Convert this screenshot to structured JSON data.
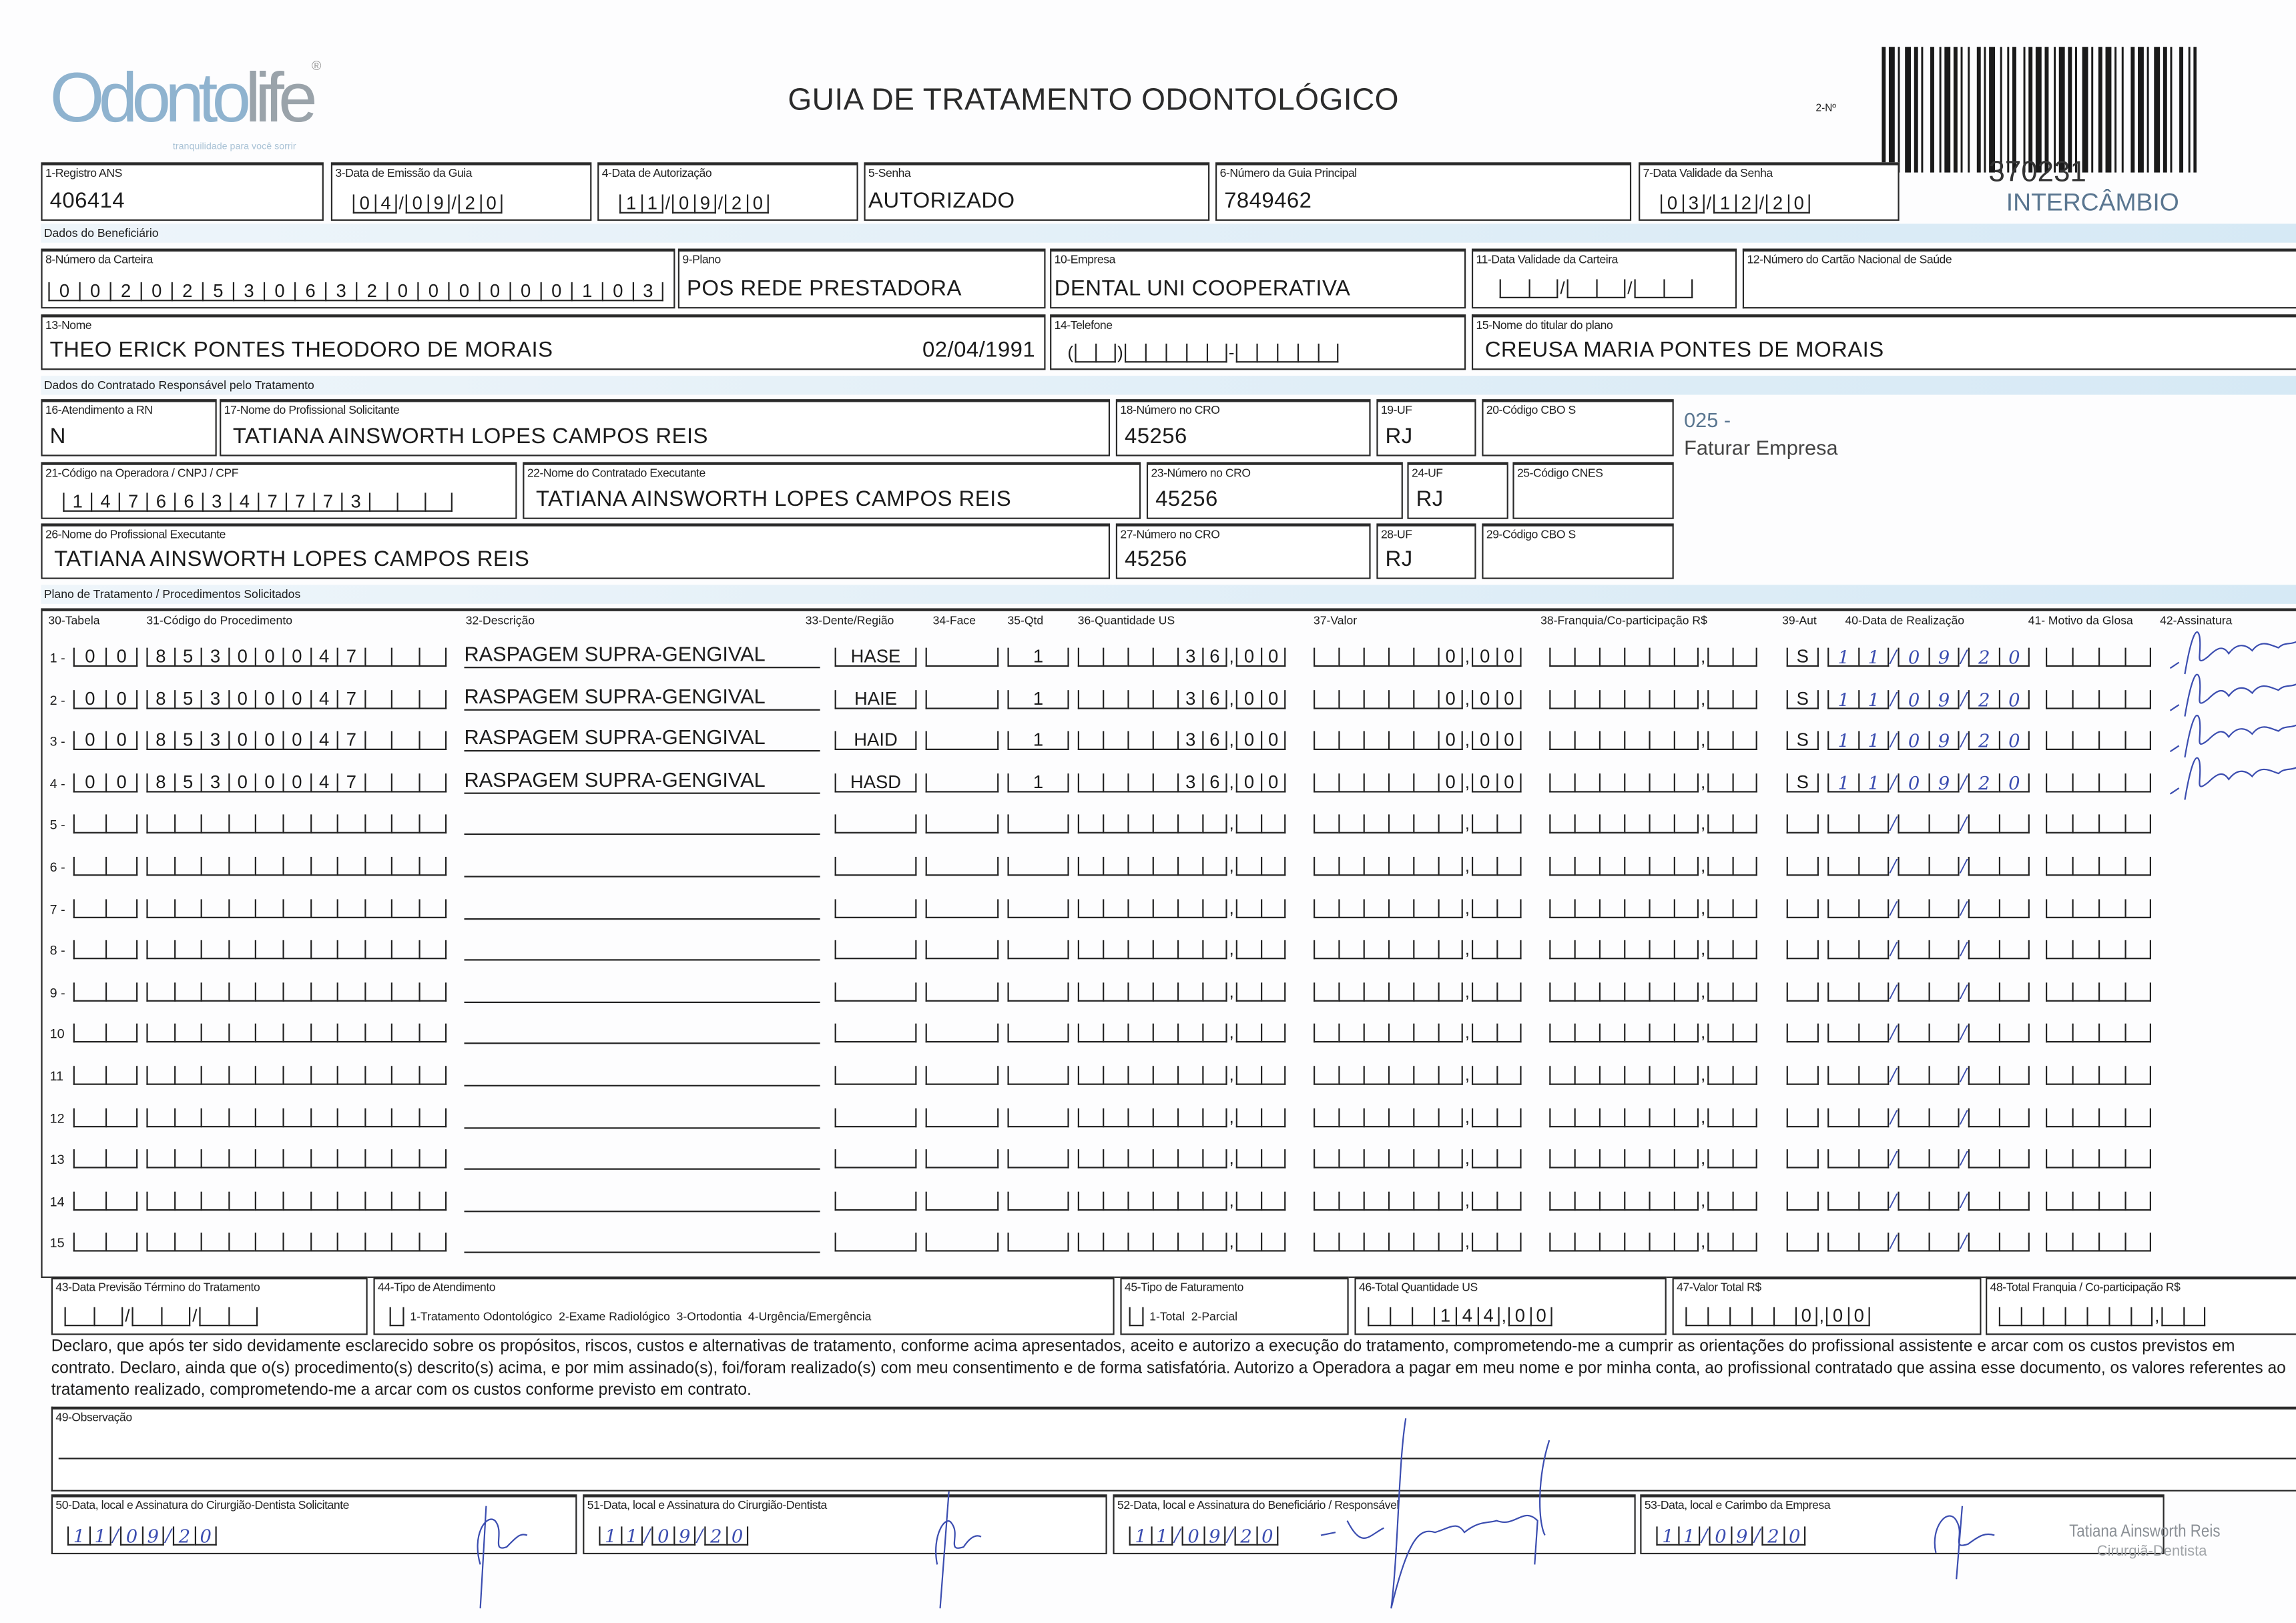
{
  "header": {
    "logo_part1": "Odonto",
    "logo_part2": "life",
    "logo_tagline": "tranquilidade para você sorrir",
    "title": "GUIA DE TRATAMENTO ODONTOLÓGICO",
    "guide_no_label": "2-Nº",
    "guide_number": "370231",
    "guide_type": "INTERCÂMBIO"
  },
  "colors": {
    "section_bar": "#d6e9f5",
    "handwriting": "#3b4db0",
    "logo_blue": "#8fb3cf",
    "guide_type": "#5a7690"
  },
  "sections": {
    "beneficiary": "Dados do Beneficiário",
    "contractor": "Dados do Contratado Responsável pelo Tratamento",
    "plan": "Plano de Tratamento / Procedimentos Solicitados"
  },
  "fields": {
    "f1": {
      "label": "1-Registro ANS",
      "value": "406414"
    },
    "f3": {
      "label": "3-Data de Emissão da Guia",
      "value": "04/09/20"
    },
    "f4": {
      "label": "4-Data de Autorização",
      "value": "11/09/20"
    },
    "f5": {
      "label": "5-Senha",
      "value": "AUTORIZADO"
    },
    "f6": {
      "label": "6-Número da Guia Principal",
      "value": "7849462"
    },
    "f7": {
      "label": "7-Data Validade da Senha",
      "value": "03/12/20"
    },
    "f8": {
      "label": "8-Número da Carteira",
      "value": "00202530632000000103"
    },
    "f9": {
      "label": "9-Plano",
      "value": "POS REDE PRESTADORA"
    },
    "f10": {
      "label": "10-Empresa",
      "value": "DENTAL UNI  COOPERATIVA"
    },
    "f11": {
      "label": "11-Data Validade da Carteira",
      "value": ""
    },
    "f12": {
      "label": "12-Número do Cartão Nacional de Saúde",
      "value": ""
    },
    "f13": {
      "label": "13-Nome",
      "value": "THEO ERICK PONTES THEODORO DE MORAIS",
      "birth_date": "02/04/1991"
    },
    "f14": {
      "label": "14-Telefone",
      "value": ""
    },
    "f15": {
      "label": "15-Nome do titular do plano",
      "value": "CREUSA MARIA PONTES DE MORAIS"
    },
    "f16": {
      "label": "16-Atendimento a RN",
      "value": "N"
    },
    "f17": {
      "label": "17-Nome do Profissional Solicitante",
      "value": "TATIANA AINSWORTH LOPES CAMPOS REIS"
    },
    "f18": {
      "label": "18-Número no CRO",
      "value": "45256"
    },
    "f19": {
      "label": "19-UF",
      "value": "RJ"
    },
    "f20": {
      "label": "20-Código CBO S",
      "value": ""
    },
    "f21": {
      "label": "21-Código na Operadora / CNPJ / CPF",
      "value": "14766347773"
    },
    "f22": {
      "label": "22-Nome do Contratado Executante",
      "value": "TATIANA AINSWORTH LOPES CAMPOS REIS"
    },
    "f23": {
      "label": "23-Número no CRO",
      "value": "45256"
    },
    "f24": {
      "label": "24-UF",
      "value": "RJ"
    },
    "f25": {
      "label": "25-Código CNES",
      "value": ""
    },
    "f26": {
      "label": "26-Nome do Profissional Executante",
      "value": "TATIANA AINSWORTH LOPES CAMPOS REIS"
    },
    "f27": {
      "label": "27-Número no CRO",
      "value": "45256"
    },
    "f28": {
      "label": "28-UF",
      "value": "RJ"
    },
    "f29": {
      "label": "29-Código CBO S",
      "value": ""
    }
  },
  "annotation": {
    "code": "025 -",
    "text": "Faturar Empresa"
  },
  "table": {
    "headers": {
      "tabela": "30-Tabela",
      "codigo": "31-Código do Procedimento",
      "descricao": "32-Descrição",
      "dente": "33-Dente/Região",
      "face": "34-Face",
      "qtd": "35-Qtd",
      "qtd_us": "36-Quantidade US",
      "valor": "37-Valor",
      "franquia": "38-Franquia/Co-participação R$",
      "aut": "39-Aut",
      "data": "40-Data de Realização",
      "glosa": "41- Motivo da Glosa",
      "assinatura": "42-Assinatura"
    },
    "items": [
      {
        "n": "1 -",
        "tabela": "00",
        "codigo": "85300047",
        "descricao": "RASPAGEM SUPRA-GENGIVAL",
        "dente": "HASE",
        "face": "",
        "qtd": "1",
        "qtd_us": "36,00",
        "valor": "0,00",
        "franquia": "",
        "aut": "S",
        "data": "11/09/20",
        "glosa": "",
        "signed": true
      },
      {
        "n": "2 -",
        "tabela": "00",
        "codigo": "85300047",
        "descricao": "RASPAGEM SUPRA-GENGIVAL",
        "dente": "HAIE",
        "face": "",
        "qtd": "1",
        "qtd_us": "36,00",
        "valor": "0,00",
        "franquia": "",
        "aut": "S",
        "data": "11/09/20",
        "glosa": "",
        "signed": true
      },
      {
        "n": "3 -",
        "tabela": "00",
        "codigo": "85300047",
        "descricao": "RASPAGEM SUPRA-GENGIVAL",
        "dente": "HAID",
        "face": "",
        "qtd": "1",
        "qtd_us": "36,00",
        "valor": "0,00",
        "franquia": "",
        "aut": "S",
        "data": "11/09/20",
        "glosa": "",
        "signed": true
      },
      {
        "n": "4 -",
        "tabela": "00",
        "codigo": "85300047",
        "descricao": "RASPAGEM SUPRA-GENGIVAL",
        "dente": "HASD",
        "face": "",
        "qtd": "1",
        "qtd_us": "36,00",
        "valor": "0,00",
        "franquia": "",
        "aut": "S",
        "data": "11/09/20",
        "glosa": "",
        "signed": true
      },
      {
        "n": "5 -"
      },
      {
        "n": "6 -"
      },
      {
        "n": "7 -"
      },
      {
        "n": "8 -"
      },
      {
        "n": "9 -"
      },
      {
        "n": "10"
      },
      {
        "n": "11"
      },
      {
        "n": "12"
      },
      {
        "n": "13"
      },
      {
        "n": "14"
      },
      {
        "n": "15"
      }
    ]
  },
  "totals": {
    "f43": {
      "label": "43-Data Previsão Término do Tratamento",
      "value": ""
    },
    "f44": {
      "label": "44-Tipo de Atendimento",
      "options": "1-Tratamento Odontológico  2-Exame Radiológico  3-Ortodontia  4-Urgência/Emergência",
      "value": ""
    },
    "f45": {
      "label": "45-Tipo de Faturamento",
      "options": "1-Total  2-Parcial",
      "value": ""
    },
    "f46": {
      "label": "46-Total Quantidade US",
      "value": "144,00"
    },
    "f47": {
      "label": "47-Valor Total R$",
      "value": "0,00"
    },
    "f48": {
      "label": "48-Total Franquia / Co-participação R$",
      "value": ""
    }
  },
  "declaration": "Declaro, que após ter sido devidamente esclarecido sobre os propósitos, riscos, custos e alternativas de tratamento, conforme acima apresentados, aceito e autorizo a execução do tratamento, comprometendo-me a cumprir as orientações do profissional assistente e arcar com os custos previstos em contrato. Declaro, ainda que o(s) procedimento(s) descrito(s) acima, e por mim assinado(s), foi/foram realizado(s) com meu consentimento e de forma satisfatória. Autorizo a Operadora a pagar em meu nome e por minha conta, ao profissional contratado que assina esse documento, os valores referentes ao tratamento realizado, comprometendo-me a arcar com os custos conforme previsto em contrato.",
  "observation": {
    "label": "49-Observação",
    "value": ""
  },
  "signatures": {
    "f50": {
      "label": "50-Data, local e Assinatura do Cirurgião-Dentista Solicitante",
      "date": "11/09/20"
    },
    "f51": {
      "label": "51-Data, local e Assinatura do Cirurgião-Dentista",
      "date": "11/09/20"
    },
    "f52": {
      "label": "52-Data, local e Assinatura do Beneficiário / Responsável",
      "date": "11/09/20"
    },
    "f53": {
      "label": "53-Data, local e Carimbo da Empresa",
      "date": "11/09/20"
    }
  },
  "stamp": {
    "name": "Tatiana Ainsworth Reis",
    "title": "Cirurgiã-Dentista"
  }
}
